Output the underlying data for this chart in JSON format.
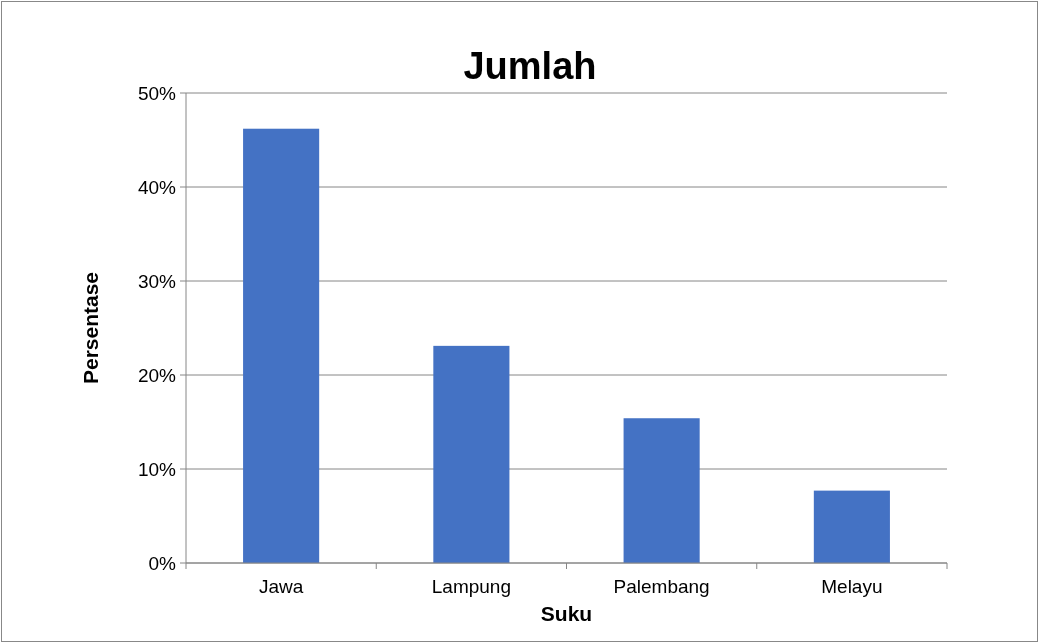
{
  "chart_data": {
    "type": "bar",
    "title": "Jumlah",
    "xlabel": "Suku",
    "ylabel": "Persentase",
    "categories": [
      "Jawa",
      "Lampung",
      "Palembang",
      "Melayu"
    ],
    "values": [
      46.2,
      23.1,
      15.4,
      7.7
    ],
    "color": "#4472c4",
    "ylim": [
      0,
      50
    ],
    "yticks": [
      {
        "value": 0,
        "label": "0%"
      },
      {
        "value": 10,
        "label": "10%"
      },
      {
        "value": 20,
        "label": "20%"
      },
      {
        "value": 30,
        "label": "30%"
      },
      {
        "value": 40,
        "label": "40%"
      },
      {
        "value": 50,
        "label": "50%"
      }
    ],
    "grid": "y"
  }
}
